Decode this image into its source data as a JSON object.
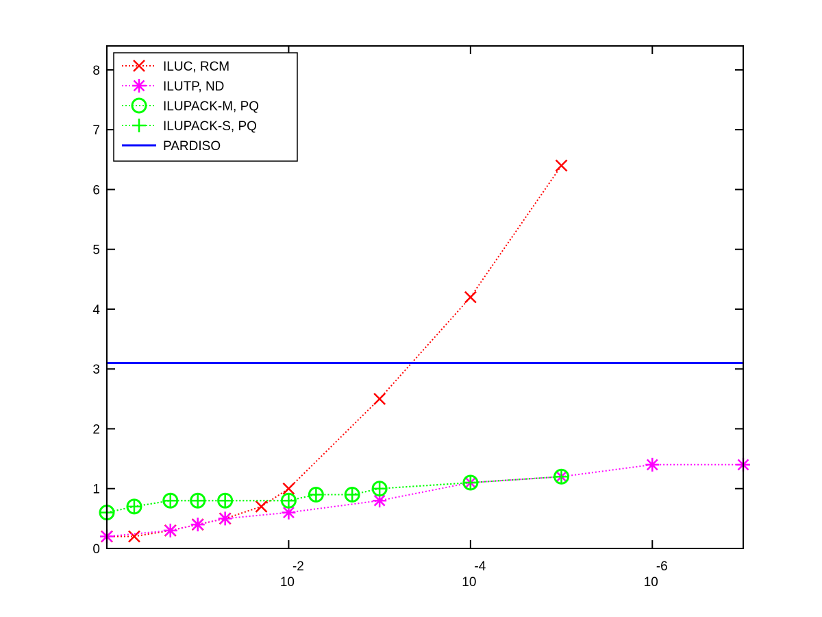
{
  "chart_data": {
    "type": "line",
    "xscale": "log",
    "x_direction": "decreasing",
    "xlim": [
      1.0,
      1e-07
    ],
    "ylim": [
      0,
      8.4
    ],
    "grid": false,
    "legend_position": "top-left",
    "y_ticks": [
      {
        "value": 0,
        "label": "0"
      },
      {
        "value": 1,
        "label": "1"
      },
      {
        "value": 2,
        "label": "2"
      },
      {
        "value": 3,
        "label": "3"
      },
      {
        "value": 4,
        "label": "4"
      },
      {
        "value": 5,
        "label": "5"
      },
      {
        "value": 6,
        "label": "6"
      },
      {
        "value": 7,
        "label": "7"
      },
      {
        "value": 8,
        "label": "8"
      }
    ],
    "x_ticks": [
      {
        "value": 0.01,
        "base": "10",
        "exponent": "-2"
      },
      {
        "value": 0.0001,
        "base": "10",
        "exponent": "-4"
      },
      {
        "value": 1e-06,
        "base": "10",
        "exponent": "-6"
      }
    ],
    "series": [
      {
        "name": "ILUC, RCM",
        "color": "#ff0000",
        "marker": "x",
        "line_style": "dotted",
        "x": [
          1.0,
          0.5,
          0.2,
          0.1,
          0.05,
          0.02,
          0.01,
          0.001,
          0.0001,
          1e-05
        ],
        "y": [
          0.2,
          0.2,
          0.3,
          0.4,
          0.5,
          0.7,
          1.0,
          2.5,
          4.2,
          6.4
        ]
      },
      {
        "name": "ILUTP,  ND",
        "color": "#ff00ff",
        "marker": "asterisk",
        "line_style": "dotted",
        "x": [
          1.0,
          0.2,
          0.1,
          0.05,
          0.01,
          0.001,
          0.0001,
          1e-05,
          1e-06,
          1e-07
        ],
        "y": [
          0.2,
          0.3,
          0.4,
          0.5,
          0.6,
          0.8,
          1.1,
          1.2,
          1.4,
          1.4
        ]
      },
      {
        "name": "ILUPACK-M, PQ",
        "color": "#00ff00",
        "marker": "circle",
        "line_style": "dotted",
        "x": [
          1.0,
          0.5,
          0.2,
          0.1,
          0.05,
          0.01,
          0.005,
          0.002,
          0.001,
          0.0001,
          1e-05
        ],
        "y": [
          0.6,
          0.7,
          0.8,
          0.8,
          0.8,
          0.8,
          0.9,
          0.9,
          1.0,
          1.1,
          1.2
        ]
      },
      {
        "name": "ILUPACK-S, PQ",
        "color": "#00ff00",
        "marker": "plus",
        "line_style": "dotted",
        "x": [
          1.0,
          0.5,
          0.2,
          0.1,
          0.05,
          0.01,
          0.005,
          0.002,
          0.001,
          0.0001,
          1e-05
        ],
        "y": [
          0.6,
          0.7,
          0.8,
          0.8,
          0.8,
          0.8,
          0.9,
          0.9,
          1.0,
          1.1,
          1.2
        ]
      },
      {
        "name": "PARDISO",
        "color": "#0000ff",
        "marker": "none",
        "line_style": "solid",
        "x": [
          1.0,
          1e-07
        ],
        "y": [
          3.1,
          3.1
        ]
      }
    ]
  }
}
